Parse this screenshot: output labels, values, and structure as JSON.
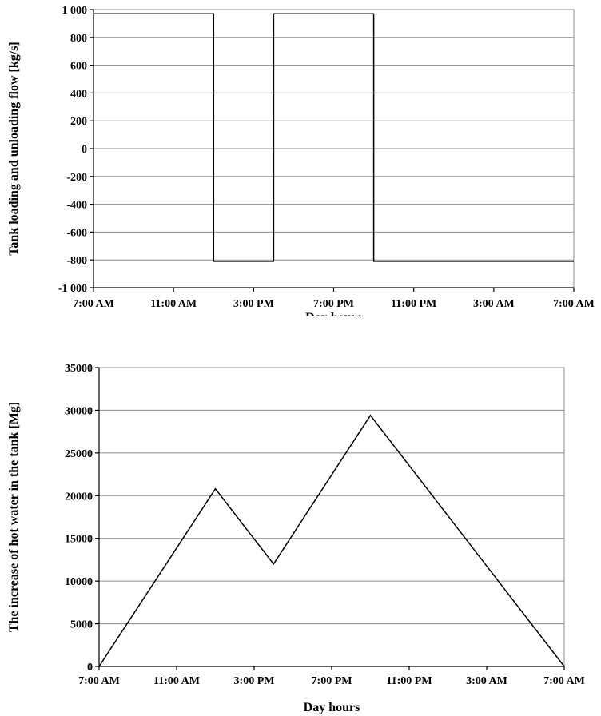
{
  "chart_data": [
    {
      "type": "line",
      "title": "",
      "xlabel": "Day hours",
      "ylabel": "Tank loading and unloading flow [kg/s]",
      "x_tick_labels": [
        "7:00 AM",
        "11:00 AM",
        "3:00 PM",
        "7:00 PM",
        "11:00 PM",
        "3:00 AM",
        "7:00 AM"
      ],
      "y_tick_labels": [
        "1 000",
        "800",
        "600",
        "400",
        "200",
        "0",
        "-200",
        "-400",
        "-600",
        "-800",
        "-1 000"
      ],
      "xlim_hours": [
        0,
        24
      ],
      "ylim": [
        -1000,
        1000
      ],
      "y_ticks": [
        1000,
        800,
        600,
        400,
        200,
        0,
        -200,
        -400,
        -600,
        -800,
        -1000
      ],
      "grid": true,
      "series": [
        {
          "x_hours": [
            0,
            6,
            6,
            9,
            9,
            14,
            14,
            24
          ],
          "values": [
            970,
            970,
            -810,
            -810,
            970,
            970,
            -810,
            -810
          ]
        }
      ]
    },
    {
      "type": "line",
      "title": "",
      "xlabel": "Day hours",
      "ylabel": "The increase of hot water in the tank [Mg]",
      "x_tick_labels": [
        "7:00 AM",
        "11:00 AM",
        "3:00 PM",
        "7:00 PM",
        "11:00 PM",
        "3:00 AM",
        "7:00 AM"
      ],
      "y_tick_labels": [
        "35000",
        "30000",
        "25000",
        "20000",
        "15000",
        "10000",
        "5000",
        "0"
      ],
      "xlim_hours": [
        0,
        24
      ],
      "ylim": [
        0,
        35000
      ],
      "y_ticks": [
        35000,
        30000,
        25000,
        20000,
        15000,
        10000,
        5000,
        0
      ],
      "grid": true,
      "series": [
        {
          "x_hours": [
            0,
            6,
            9,
            14,
            24
          ],
          "values": [
            0,
            20800,
            12000,
            29400,
            0
          ]
        }
      ]
    }
  ]
}
